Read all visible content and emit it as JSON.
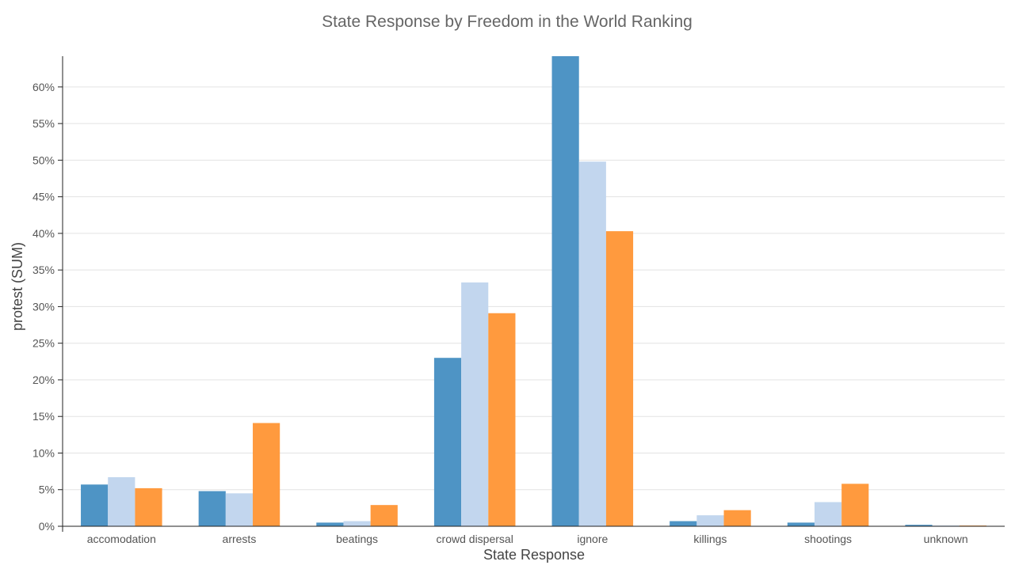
{
  "chart_data": {
    "type": "bar",
    "title": "State Response by Freedom in the World Ranking",
    "xlabel": "State Response",
    "ylabel": "protest (SUM)",
    "categories": [
      "accomodation",
      "arrests",
      "beatings",
      "crowd dispersal",
      "ignore",
      "killings",
      "shootings",
      "unknown"
    ],
    "series": [
      {
        "color": "#4e94c5",
        "values": [
          5.7,
          4.8,
          0.5,
          23.0,
          64.2,
          0.7,
          0.5,
          0.2
        ]
      },
      {
        "color": "#c2d6ee",
        "values": [
          6.7,
          4.5,
          0.7,
          33.3,
          49.8,
          1.5,
          3.3,
          0.1
        ]
      },
      {
        "color": "#ff9a3e",
        "values": [
          5.2,
          14.1,
          2.9,
          29.1,
          40.3,
          2.2,
          5.8,
          0.1
        ]
      }
    ],
    "ylim": [
      0,
      64.2
    ],
    "y_ticks": [
      0,
      5,
      10,
      15,
      20,
      25,
      30,
      35,
      40,
      45,
      50,
      55,
      60
    ],
    "y_tick_format": "percent",
    "grid": true,
    "legend": "none"
  }
}
